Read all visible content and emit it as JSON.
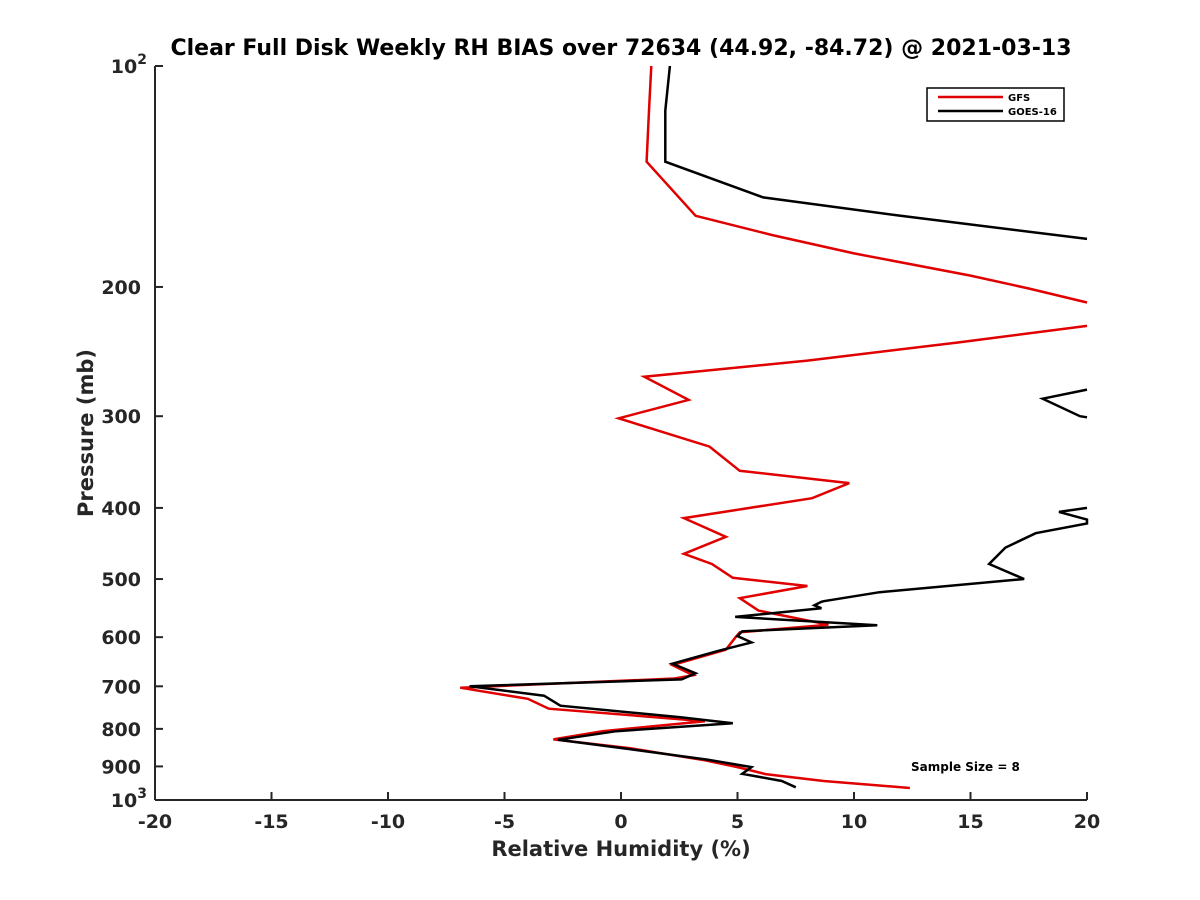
{
  "chart_data": {
    "type": "line",
    "title": "Clear Full Disk Weekly RH BIAS over 72634 (44.92, -84.72) @ 2021-03-13",
    "xlabel": "Relative Humidity (%)",
    "ylabel": "Pressure (mb)",
    "xlim": [
      -20,
      20
    ],
    "ylim": [
      100,
      1000
    ],
    "y_scale": "log",
    "y_reversed": true,
    "x_ticks": [
      -20,
      -15,
      -10,
      -5,
      0,
      5,
      10,
      15,
      20
    ],
    "x_tick_labels": [
      "-20",
      "-15",
      "-10",
      "-5",
      "0",
      "5",
      "10",
      "15",
      "20"
    ],
    "y_ticks": [
      200,
      300,
      400,
      500,
      600,
      700,
      800,
      900
    ],
    "y_tick_labels": [
      "200",
      "300",
      "400",
      "500",
      "600",
      "700",
      "800",
      "900"
    ],
    "y_end_ticks": [
      {
        "value": 100,
        "base": "10",
        "exp": "2"
      },
      {
        "value": 1000,
        "base": "10",
        "exp": "3"
      }
    ],
    "legend_position": "top-right",
    "grid": false,
    "annotation": "Sample Size = 8",
    "series": [
      {
        "name": "GFS",
        "color": "#e00000",
        "points": [
          [
            1.3,
            100
          ],
          [
            1.2,
            115
          ],
          [
            1.1,
            135
          ],
          [
            3.2,
            160
          ],
          [
            6.5,
            170
          ],
          [
            10,
            180
          ],
          [
            15,
            193
          ],
          [
            17.5,
            201
          ],
          [
            20,
            210
          ],
          null,
          [
            20,
            226
          ],
          [
            14.5,
            238
          ],
          [
            8,
            252
          ],
          [
            1.0,
            265
          ],
          [
            2.9,
            285
          ],
          [
            -0.1,
            302
          ],
          [
            3.8,
            330
          ],
          [
            5.1,
            356
          ],
          [
            9.8,
            370
          ],
          [
            8.2,
            388
          ],
          [
            2.7,
            413
          ],
          [
            4.5,
            438
          ],
          [
            2.7,
            462
          ],
          [
            3.9,
            477
          ],
          [
            4.8,
            498
          ],
          [
            8.0,
            511
          ],
          [
            5.1,
            531
          ],
          [
            5.9,
            552
          ],
          [
            8.9,
            577
          ],
          [
            5.1,
            591
          ],
          [
            4.9,
            601
          ],
          [
            4.5,
            624
          ],
          [
            2.2,
            655
          ],
          [
            3.1,
            676
          ],
          [
            2.3,
            683
          ],
          [
            -6.9,
            703
          ],
          [
            -4.0,
            728
          ],
          [
            -3.1,
            751
          ],
          [
            3.6,
            781
          ],
          [
            -0.8,
            806
          ],
          [
            -2.9,
            827
          ],
          [
            0.4,
            850
          ],
          [
            3.6,
            883
          ],
          [
            5.0,
            902
          ],
          [
            6.2,
            922
          ],
          [
            8.7,
            942
          ],
          [
            12.4,
            963
          ]
        ]
      },
      {
        "name": "GOES-16",
        "color": "#000000",
        "points": [
          [
            2.1,
            100
          ],
          [
            1.9,
            115
          ],
          [
            1.9,
            135
          ],
          [
            6.1,
            151
          ],
          [
            12,
            160
          ],
          [
            20,
            172
          ],
          null,
          [
            20,
            276
          ],
          [
            18.1,
            284
          ],
          [
            19.7,
            300
          ],
          [
            20,
            301
          ],
          null,
          [
            20,
            400
          ],
          [
            18.8,
            405
          ],
          [
            20,
            415
          ],
          [
            20,
            420
          ],
          [
            17.8,
            433
          ],
          [
            16.5,
            453
          ],
          [
            15.8,
            477
          ],
          [
            17.3,
            500
          ],
          [
            11.1,
            521
          ],
          [
            8.7,
            536
          ],
          [
            8.6,
            537
          ],
          [
            8.3,
            543
          ],
          [
            8.6,
            548
          ],
          [
            4.9,
            563
          ],
          [
            11.0,
            578
          ],
          [
            5.2,
            589
          ],
          [
            5.0,
            598
          ],
          [
            5.6,
            610
          ],
          [
            4.2,
            626
          ],
          [
            2.2,
            652
          ],
          [
            3.2,
            672
          ],
          [
            2.6,
            685
          ],
          [
            -6.5,
            700
          ],
          [
            -3.3,
            721
          ],
          [
            -2.6,
            744
          ],
          [
            2.5,
            771
          ],
          [
            4.8,
            786
          ],
          [
            -0.2,
            806
          ],
          [
            -2.7,
            828
          ],
          [
            0.2,
            851
          ],
          [
            3.7,
            881
          ],
          [
            5.6,
            902
          ],
          [
            5.2,
            921
          ],
          [
            6.9,
            942
          ],
          [
            7.5,
            961
          ]
        ]
      }
    ]
  }
}
